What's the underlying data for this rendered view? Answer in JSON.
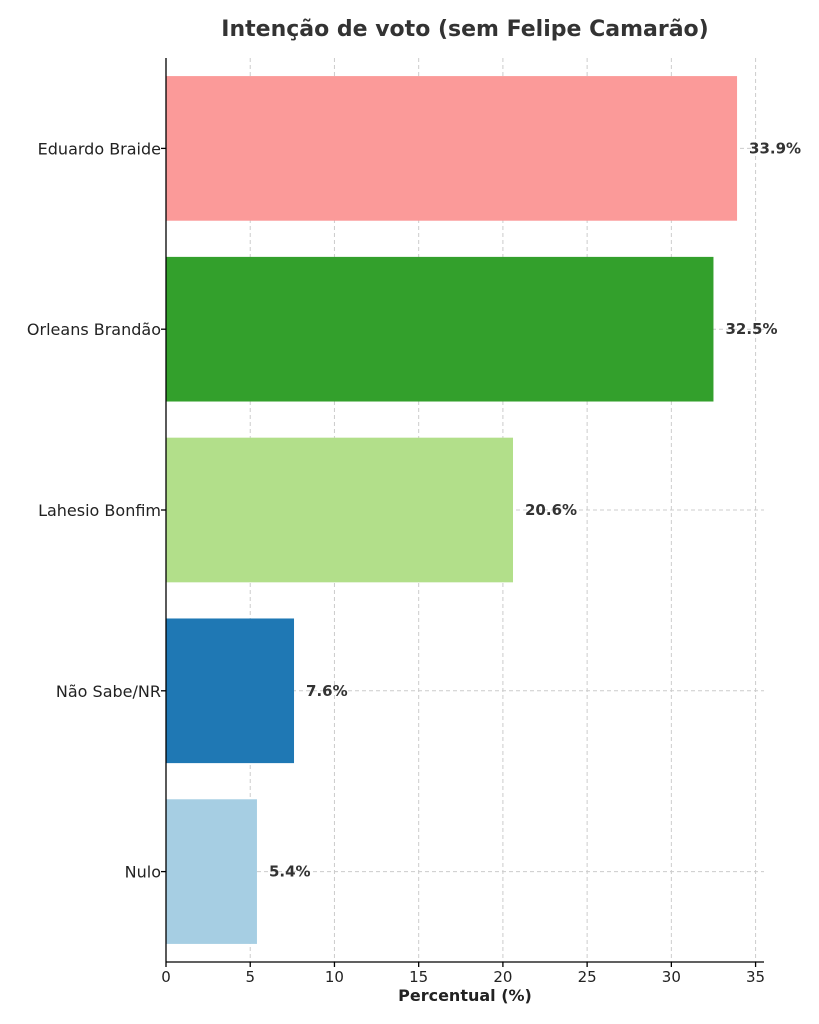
{
  "chart_data": {
    "type": "bar",
    "orientation": "horizontal",
    "title": "Intenção de voto (sem Felipe Camarão)",
    "xlabel": "Percentual (%)",
    "ylabel": "",
    "categories": [
      "Eduardo Braide",
      "Orleans Brandão",
      "Lahesio Bonfim",
      "Não Sabe/NR",
      "Nulo"
    ],
    "values": [
      33.9,
      32.5,
      20.6,
      7.6,
      5.4
    ],
    "value_labels": [
      "33.9%",
      "32.5%",
      "20.6%",
      "7.6%",
      "5.4%"
    ],
    "colors": [
      "#fb9a99",
      "#33a02c",
      "#b2df8a",
      "#1f78b4",
      "#a6cee3"
    ],
    "xlim": [
      0,
      35.5
    ],
    "xticks": [
      0,
      5,
      10,
      15,
      20,
      25,
      30,
      35
    ],
    "grid": true
  }
}
